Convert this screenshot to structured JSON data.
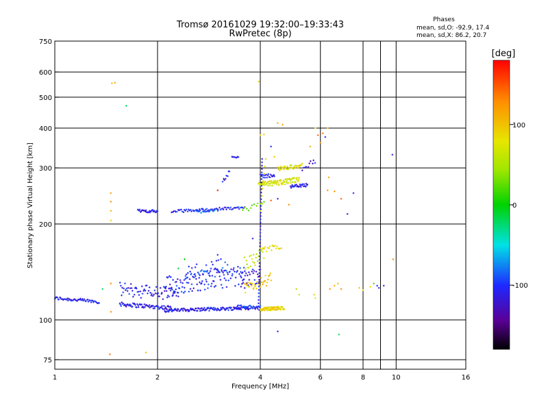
{
  "chart_data": {
    "type": "scatter",
    "title": "Tromsø 20161029 19:32:00–19:33:43",
    "subtitle": "RwPretec (8p)",
    "xlabel": "Frequency [MHz]",
    "ylabel": "Stationary phase Virtual Height [km]",
    "x_scale": "log",
    "y_scale": "log",
    "xlim": [
      1,
      16
    ],
    "ylim": [
      70,
      750
    ],
    "x_ticks": [
      1,
      2,
      4,
      6,
      8,
      10,
      16
    ],
    "x_minor_gridlines": [
      9
    ],
    "y_ticks": [
      75,
      100,
      200,
      300,
      400,
      500,
      600,
      750
    ],
    "grid": true,
    "stats": {
      "heading": "Phases",
      "o_line": "mean, sd,O: -92.9, 17.4",
      "x_line": "mean, sd,X: 86.2, 20.7"
    },
    "colorbar": {
      "label": "[deg]",
      "range": [
        -180,
        180
      ],
      "ticks": [
        100,
        0,
        -100
      ],
      "colormap": "rainbow"
    },
    "colors": {
      "black": "#000000",
      "violet": "#5a0096",
      "blue": "#1e28ff",
      "cyan": "#00e1e6",
      "green": "#00d200",
      "yellow": "#e6e600",
      "orange": "#ff8c00",
      "red": "#ff0000"
    },
    "segments": [
      {
        "x0": 1.0,
        "x1": 1.35,
        "h0": 117,
        "h1": 114,
        "n": 55,
        "jitter": 0.012,
        "phase": -108
      },
      {
        "x0": 1.55,
        "x1": 2.2,
        "h0": 112,
        "h1": 109,
        "n": 75,
        "jitter": 0.015,
        "phase": -112
      },
      {
        "x0": 2.1,
        "x1": 3.7,
        "h0": 107,
        "h1": 109,
        "n": 130,
        "jitter": 0.012,
        "phase": -110
      },
      {
        "x0": 3.4,
        "x1": 4.0,
        "h0": 110,
        "h1": 109,
        "n": 40,
        "jitter": 0.015,
        "phase": -100
      },
      {
        "x0": 1.55,
        "x1": 2.3,
        "h0": 125,
        "h1": 120,
        "n": 70,
        "jitter": 0.05,
        "phase": -108
      },
      {
        "x0": 2.1,
        "x1": 3.6,
        "h0": 128,
        "h1": 138,
        "n": 120,
        "jitter": 0.07,
        "phase": -104
      },
      {
        "x0": 2.4,
        "x1": 3.2,
        "h0": 140,
        "h1": 150,
        "n": 40,
        "jitter": 0.05,
        "phase": -95
      },
      {
        "x0": 3.5,
        "x1": 4.0,
        "h0": 130,
        "h1": 140,
        "n": 30,
        "jitter": 0.06,
        "phase": -115
      },
      {
        "x0": 1.75,
        "x1": 2.0,
        "h0": 220,
        "h1": 219,
        "n": 30,
        "jitter": 0.01,
        "phase": -110
      },
      {
        "x0": 2.2,
        "x1": 3.6,
        "h0": 219,
        "h1": 225,
        "n": 70,
        "jitter": 0.01,
        "phase": -105
      },
      {
        "x0": 2.6,
        "x1": 3.0,
        "h0": 218,
        "h1": 222,
        "n": 15,
        "jitter": 0.01,
        "phase": -80
      },
      {
        "x0": 3.55,
        "x1": 4.1,
        "h0": 222,
        "h1": 230,
        "n": 12,
        "jitter": 0.02,
        "phase": 40
      },
      {
        "x0": 4.0,
        "x1": 4.7,
        "h0": 108,
        "h1": 109,
        "n": 70,
        "jitter": 0.012,
        "phase": 110
      },
      {
        "x0": 3.6,
        "x1": 4.1,
        "h0": 150,
        "h1": 160,
        "n": 25,
        "jitter": 0.05,
        "phase": 80
      },
      {
        "x0": 3.6,
        "x1": 4.3,
        "h0": 125,
        "h1": 135,
        "n": 35,
        "jitter": 0.04,
        "phase": 115
      },
      {
        "x0": 4.0,
        "x1": 4.6,
        "h0": 165,
        "h1": 170,
        "n": 18,
        "jitter": 0.02,
        "phase": 110
      },
      {
        "x0": 3.95,
        "x1": 5.2,
        "h0": 265,
        "h1": 275,
        "n": 90,
        "jitter": 0.02,
        "phase": 95
      },
      {
        "x0": 4.5,
        "x1": 5.3,
        "h0": 298,
        "h1": 305,
        "n": 40,
        "jitter": 0.015,
        "phase": 100
      },
      {
        "x0": 4.0,
        "x1": 4.4,
        "h0": 282,
        "h1": 285,
        "n": 20,
        "jitter": 0.015,
        "phase": -105
      },
      {
        "x0": 4.9,
        "x1": 5.5,
        "h0": 262,
        "h1": 265,
        "n": 30,
        "jitter": 0.012,
        "phase": -110
      },
      {
        "x0": 5.3,
        "x1": 5.8,
        "h0": 300,
        "h1": 315,
        "n": 10,
        "jitter": 0.02,
        "phase": -112
      },
      {
        "x0": 3.3,
        "x1": 3.45,
        "h0": 326,
        "h1": 323,
        "n": 8,
        "jitter": 0.005,
        "phase": -112
      },
      {
        "x0": 3.1,
        "x1": 3.25,
        "h0": 275,
        "h1": 290,
        "n": 8,
        "jitter": 0.02,
        "phase": -110
      },
      {
        "x0": 3.95,
        "x1": 4.05,
        "h0": 110,
        "h1": 320,
        "n": 45,
        "jitter": 0.0,
        "phase": -110
      },
      {
        "x0": 4.0,
        "x1": 4.15,
        "h0": 220,
        "h1": 320,
        "n": 8,
        "jitter": 0.0,
        "phase": 100
      }
    ],
    "points": [
      {
        "x": 1.47,
        "h": 553,
        "phase": 120
      },
      {
        "x": 1.5,
        "h": 555,
        "phase": 135
      },
      {
        "x": 1.62,
        "h": 470,
        "phase": -20
      },
      {
        "x": 3.96,
        "h": 560,
        "phase": 120
      },
      {
        "x": 1.46,
        "h": 250,
        "phase": 140
      },
      {
        "x": 1.46,
        "h": 235,
        "phase": 145
      },
      {
        "x": 1.46,
        "h": 220,
        "phase": 130
      },
      {
        "x": 1.46,
        "h": 205,
        "phase": 110
      },
      {
        "x": 1.46,
        "h": 130,
        "phase": 150
      },
      {
        "x": 1.45,
        "h": 78,
        "phase": 155
      },
      {
        "x": 1.85,
        "h": 79,
        "phase": 120
      },
      {
        "x": 1.46,
        "h": 106,
        "phase": 150
      },
      {
        "x": 4.0,
        "h": 380,
        "phase": 110
      },
      {
        "x": 4.1,
        "h": 382,
        "phase": 115
      },
      {
        "x": 4.5,
        "h": 415,
        "phase": 130
      },
      {
        "x": 4.65,
        "h": 410,
        "phase": 140
      },
      {
        "x": 4.3,
        "h": 350,
        "phase": -100
      },
      {
        "x": 4.4,
        "h": 325,
        "phase": 120
      },
      {
        "x": 4.85,
        "h": 230,
        "phase": 150
      },
      {
        "x": 4.3,
        "h": 237,
        "phase": 160
      },
      {
        "x": 4.5,
        "h": 240,
        "phase": -110
      },
      {
        "x": 3.0,
        "h": 255,
        "phase": 175
      },
      {
        "x": 3.8,
        "h": 180,
        "phase": -110
      },
      {
        "x": 5.9,
        "h": 380,
        "phase": 160
      },
      {
        "x": 6.1,
        "h": 385,
        "phase": 155
      },
      {
        "x": 6.2,
        "h": 375,
        "phase": -110
      },
      {
        "x": 6.3,
        "h": 400,
        "phase": 130
      },
      {
        "x": 6.0,
        "h": 360,
        "phase": 150
      },
      {
        "x": 6.35,
        "h": 280,
        "phase": 140
      },
      {
        "x": 6.3,
        "h": 255,
        "phase": 140
      },
      {
        "x": 6.6,
        "h": 253,
        "phase": 150
      },
      {
        "x": 6.9,
        "h": 240,
        "phase": 160
      },
      {
        "x": 7.5,
        "h": 250,
        "phase": -110
      },
      {
        "x": 7.2,
        "h": 215,
        "phase": -110
      },
      {
        "x": 9.75,
        "h": 330,
        "phase": -110
      },
      {
        "x": 5.6,
        "h": 350,
        "phase": 130
      },
      {
        "x": 5.8,
        "h": 400,
        "phase": 100
      },
      {
        "x": 6.4,
        "h": 125,
        "phase": 140
      },
      {
        "x": 6.6,
        "h": 128,
        "phase": 130
      },
      {
        "x": 6.75,
        "h": 130,
        "phase": 120
      },
      {
        "x": 6.9,
        "h": 125,
        "phase": 150
      },
      {
        "x": 7.8,
        "h": 126,
        "phase": 120
      },
      {
        "x": 8.0,
        "h": 124,
        "phase": 110
      },
      {
        "x": 8.4,
        "h": 127,
        "phase": 100
      },
      {
        "x": 8.6,
        "h": 130,
        "phase": 30
      },
      {
        "x": 8.8,
        "h": 128,
        "phase": -100
      },
      {
        "x": 8.9,
        "h": 126,
        "phase": -110
      },
      {
        "x": 9.2,
        "h": 128,
        "phase": -115
      },
      {
        "x": 9.8,
        "h": 155,
        "phase": 150
      },
      {
        "x": 5.75,
        "h": 120,
        "phase": 110
      },
      {
        "x": 5.8,
        "h": 117,
        "phase": 100
      },
      {
        "x": 6.8,
        "h": 90,
        "phase": -20
      },
      {
        "x": 4.5,
        "h": 92,
        "phase": -110
      },
      {
        "x": 5.1,
        "h": 125,
        "phase": 80
      },
      {
        "x": 5.2,
        "h": 120,
        "phase": 90
      },
      {
        "x": 2.4,
        "h": 155,
        "phase": 0
      },
      {
        "x": 2.3,
        "h": 145,
        "phase": -20
      },
      {
        "x": 3.0,
        "h": 160,
        "phase": -100
      },
      {
        "x": 1.38,
        "h": 125,
        "phase": -20
      }
    ]
  }
}
